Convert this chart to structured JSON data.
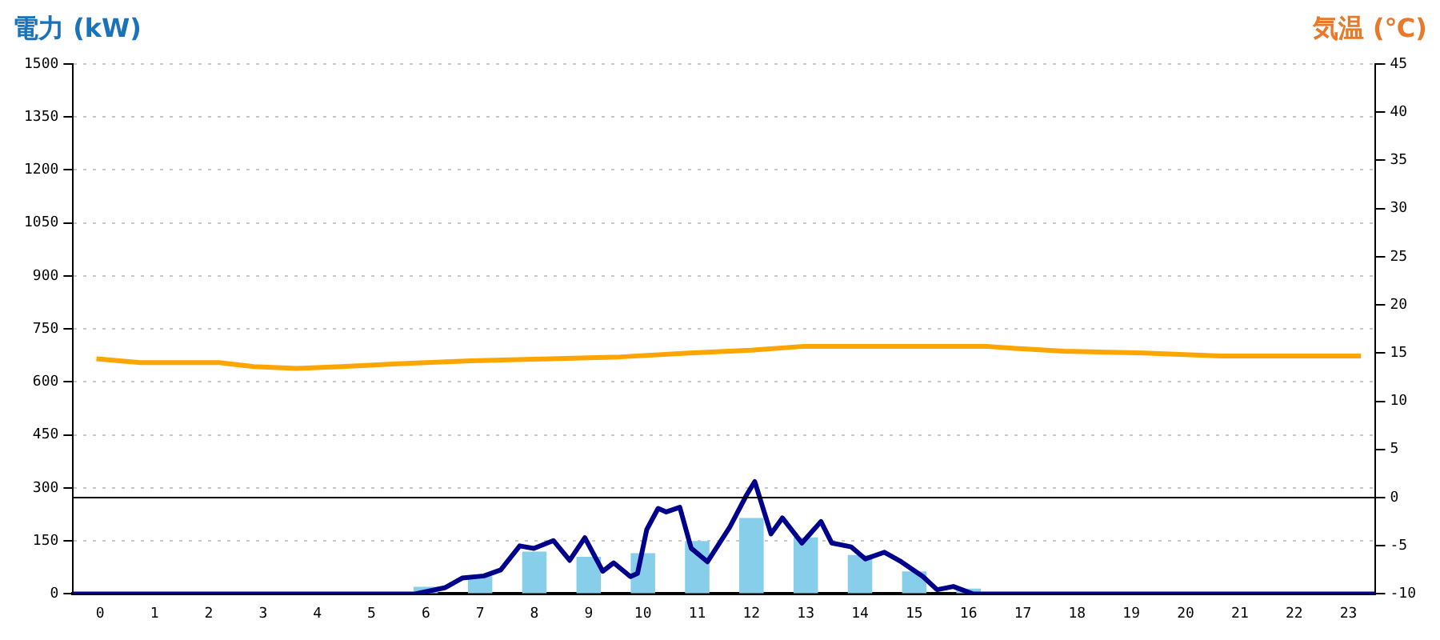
{
  "chart_data": {
    "type": "bar",
    "ylabel": "電力 (kW)",
    "y2label": "気温 (℃)",
    "x": [
      0.5,
      1.5,
      2.5,
      3.5,
      4.5,
      5.5,
      6.5,
      7.5,
      8.5,
      9.5,
      10.5,
      11.5,
      12.5,
      13.5,
      14.5,
      15.5,
      16.5,
      17.5,
      18.5,
      19.5,
      20.5,
      21.5,
      22.5,
      23.5
    ],
    "xlim": [
      0,
      24
    ],
    "xticks": [
      {
        "value": 0.5,
        "label": "0"
      },
      {
        "value": 1.5,
        "label": "1"
      },
      {
        "value": 2.5,
        "label": "2"
      },
      {
        "value": 3.5,
        "label": "3"
      },
      {
        "value": 4.5,
        "label": "4"
      },
      {
        "value": 5.5,
        "label": "5"
      },
      {
        "value": 6.5,
        "label": "6"
      },
      {
        "value": 7.5,
        "label": "7"
      },
      {
        "value": 8.5,
        "label": "8"
      },
      {
        "value": 9.5,
        "label": "9"
      },
      {
        "value": 10.5,
        "label": "10"
      },
      {
        "value": 11.5,
        "label": "11"
      },
      {
        "value": 12.5,
        "label": "12"
      },
      {
        "value": 13.5,
        "label": "13"
      },
      {
        "value": 14.5,
        "label": "14"
      },
      {
        "value": 15.5,
        "label": "15"
      },
      {
        "value": 16.5,
        "label": "16"
      },
      {
        "value": 17.5,
        "label": "17"
      },
      {
        "value": 18.5,
        "label": "18"
      },
      {
        "value": 19.5,
        "label": "19"
      },
      {
        "value": 20.5,
        "label": "20"
      },
      {
        "value": 21.5,
        "label": "21"
      },
      {
        "value": 22.5,
        "label": "22"
      },
      {
        "value": 23.5,
        "label": "23"
      }
    ],
    "ylim": [
      0,
      1500
    ],
    "yticks": [
      0,
      150,
      300,
      450,
      600,
      750,
      900,
      1050,
      1200,
      1350,
      1500
    ],
    "y2lim": [
      -10,
      45
    ],
    "y2ticks": [
      -10,
      -5,
      0,
      5,
      10,
      15,
      20,
      25,
      30,
      35,
      40,
      45
    ],
    "series": [
      {
        "color": "#87ceeb",
        "values": [
          0,
          0,
          0,
          0,
          0,
          0,
          20,
          50,
          120,
          105,
          115,
          150,
          215,
          160,
          110,
          64,
          15,
          0,
          0,
          0,
          0,
          0,
          0,
          0
        ]
      },
      {
        "type": "line",
        "color": "#00008b",
        "x": [
          0,
          6.3,
          6.86,
          7.17,
          7.57,
          7.88,
          8.23,
          8.49,
          8.85,
          9.15,
          9.43,
          9.76,
          9.96,
          10.27,
          10.4,
          10.57,
          10.78,
          10.93,
          11.18,
          11.39,
          11.69,
          12.1,
          12.41,
          12.56,
          12.86,
          13.07,
          13.43,
          13.78,
          13.98,
          14.34,
          14.6,
          14.95,
          15.26,
          15.66,
          15.92,
          16.22,
          16.58,
          24
        ],
        "values": [
          0,
          0,
          18,
          45,
          51,
          68,
          136,
          129,
          151,
          95,
          159,
          64,
          88,
          49,
          58,
          182,
          242,
          232,
          245,
          129,
          91,
          189,
          280,
          318,
          170,
          215,
          144,
          205,
          144,
          133,
          99,
          118,
          91,
          49,
          12,
          21,
          0,
          0
        ]
      },
      {
        "type": "line",
        "color": "#ffa500",
        "axis": "y2",
        "x": [
          0.43,
          1.24,
          2.69,
          3.33,
          4.12,
          4.95,
          6.05,
          7.33,
          8.79,
          10.08,
          11.36,
          12.49,
          13.47,
          16.82,
          17.31,
          18.26,
          19.73,
          21.16,
          23.73
        ],
        "values": [
          14.4,
          14.0,
          14,
          13.6,
          13.4,
          13.6,
          13.9,
          14.2,
          14.4,
          14.6,
          15,
          15.3,
          15.7,
          15.7,
          15.5,
          15.2,
          15,
          14.7,
          14.7
        ]
      }
    ],
    "ref_lines": [
      {
        "axis": "y2",
        "value": 0,
        "color": "#000000"
      }
    ],
    "grid": "y",
    "marker": "none",
    "legend": false
  }
}
